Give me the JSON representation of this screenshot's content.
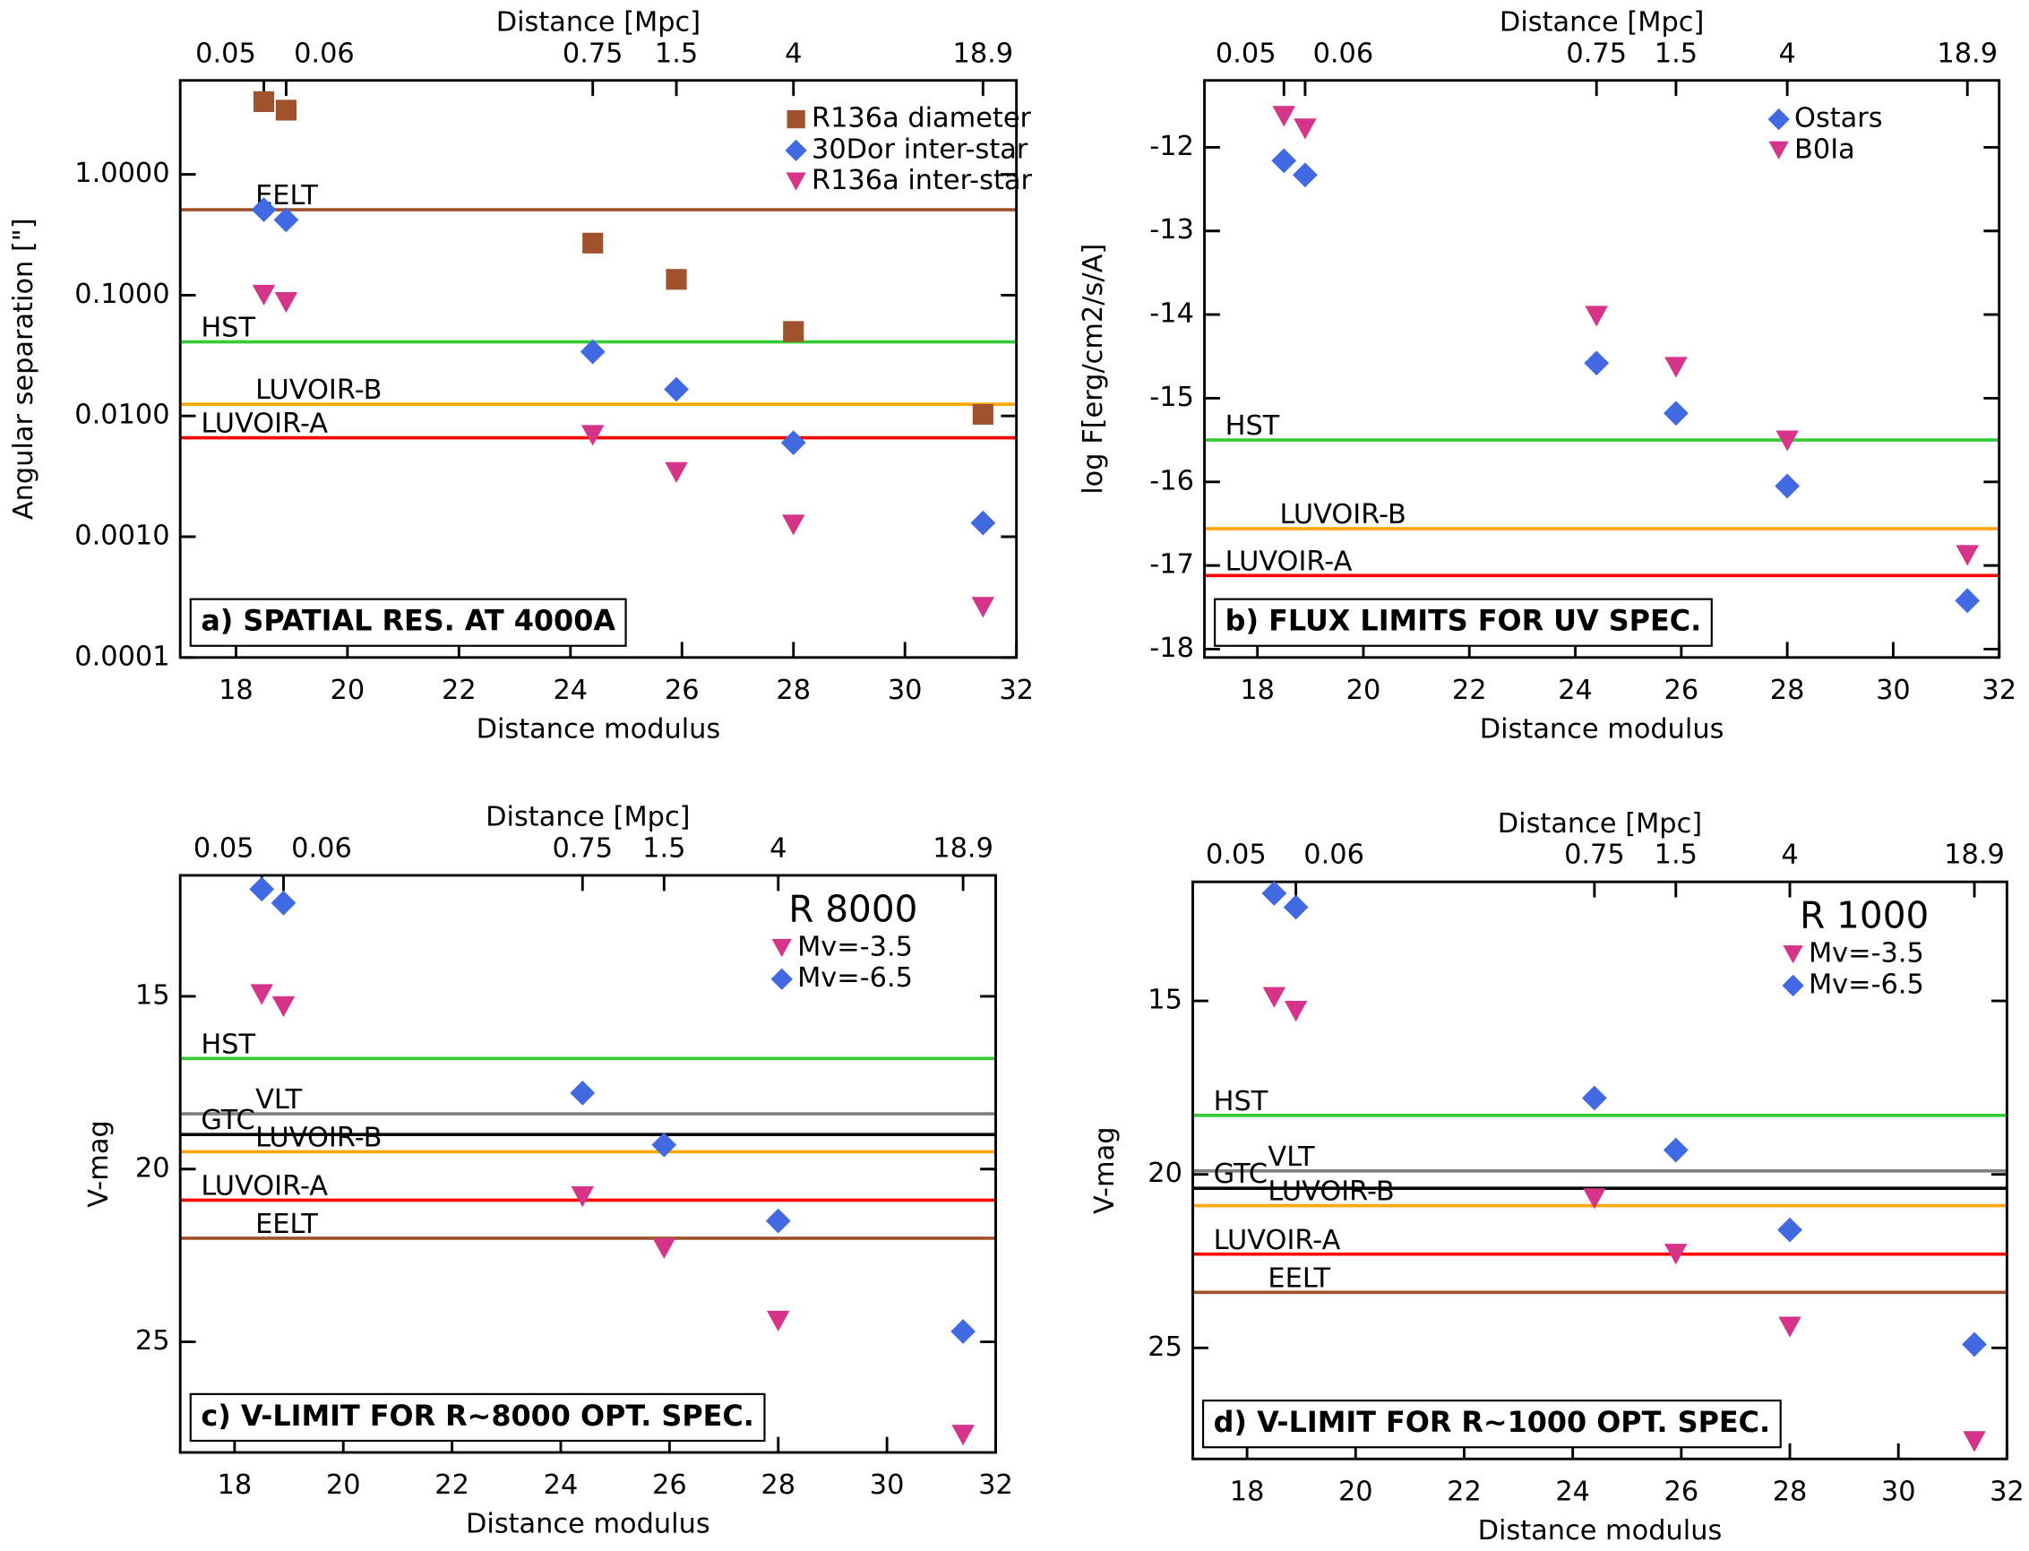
{
  "chart_data": [
    {
      "type": "scatter",
      "title": "a) SPATIAL RES. AT 4000A",
      "xlabel": "Distance modulus",
      "x2label": "Distance [Mpc]",
      "ylabel": "Angular separation [\"]",
      "xlim": [
        17,
        32
      ],
      "xticks": [
        18,
        20,
        22,
        24,
        26,
        28,
        30,
        32
      ],
      "x2ticks": [
        {
          "value": 18.5,
          "label": "0.05"
        },
        {
          "value": 18.9,
          "label": "0.06"
        },
        {
          "value": 24.4,
          "label": "0.75"
        },
        {
          "value": 25.9,
          "label": "1.5"
        },
        {
          "value": 28,
          "label": "4"
        },
        {
          "value": 31.4,
          "label": "18.9"
        }
      ],
      "ylim": [
        0.0001,
        6
      ],
      "ylog": true,
      "yreverse": false,
      "yticks": [
        {
          "value": 1,
          "label": "1.0000"
        },
        {
          "value": 0.1,
          "label": "0.1000"
        },
        {
          "value": 0.01,
          "label": "0.0100"
        },
        {
          "value": 0.001,
          "label": "0.0010"
        },
        {
          "value": 0.0001,
          "label": "0.0001"
        }
      ],
      "legend": "upper right",
      "series": [
        {
          "name": "R136a diameter",
          "color": "#a0522d",
          "marker": "square",
          "x": [
            18.5,
            18.9,
            24.4,
            25.9,
            28,
            31.4
          ],
          "values": [
            4.0,
            3.4,
            0.27,
            0.135,
            0.05,
            0.0103
          ]
        },
        {
          "name": "30Dor inter-star",
          "color": "#4169e1",
          "marker": "diamond",
          "x": [
            18.5,
            18.9,
            24.4,
            25.9,
            28,
            31.4
          ],
          "values": [
            0.51,
            0.42,
            0.034,
            0.0166,
            0.006,
            0.0013
          ]
        },
        {
          "name": "R136a inter-star",
          "color": "#d6338a",
          "marker": "triangle",
          "x": [
            18.5,
            18.9,
            24.4,
            25.9,
            28,
            31.4
          ],
          "values": [
            0.1,
            0.087,
            0.0069,
            0.0034,
            0.00125,
            0.00026
          ]
        }
      ],
      "hlines": [
        {
          "name": "EELT",
          "color": "#a0522d",
          "value": 0.51
        },
        {
          "name": "HST",
          "color": "#33cc33",
          "value": 0.041
        },
        {
          "name": "LUVOIR-B",
          "color": "#ffa500",
          "value": 0.0125
        },
        {
          "name": "LUVOIR-A",
          "color": "#ff0000",
          "value": 0.0066
        }
      ]
    },
    {
      "type": "scatter",
      "title": "b) FLUX LIMITS FOR UV SPEC.",
      "xlabel": "Distance modulus",
      "x2label": "Distance [Mpc]",
      "ylabel": "log F[erg/cm2/s/A]",
      "xlim": [
        17,
        32
      ],
      "xticks": [
        18,
        20,
        22,
        24,
        26,
        28,
        30,
        32
      ],
      "x2ticks": [
        {
          "value": 18.5,
          "label": "0.05"
        },
        {
          "value": 18.9,
          "label": "0.06"
        },
        {
          "value": 24.4,
          "label": "0.75"
        },
        {
          "value": 25.9,
          "label": "1.5"
        },
        {
          "value": 28,
          "label": "4"
        },
        {
          "value": 31.4,
          "label": "18.9"
        }
      ],
      "ylim": [
        -18.1,
        -11.2
      ],
      "ylog": false,
      "yreverse": false,
      "yticks": [
        -12,
        -13,
        -14,
        -15,
        -16,
        -17,
        -18
      ],
      "legend": "upper right",
      "series": [
        {
          "name": "Ostars",
          "color": "#4169e1",
          "marker": "diamond",
          "x": [
            18.5,
            18.9,
            24.4,
            25.9,
            28,
            31.4
          ],
          "values": [
            -12.16,
            -12.33,
            -14.58,
            -15.18,
            -16.05,
            -17.42
          ]
        },
        {
          "name": "B0Ia",
          "color": "#d6338a",
          "marker": "triangle",
          "x": [
            18.5,
            18.9,
            24.4,
            25.9,
            28,
            31.4
          ],
          "values": [
            -11.63,
            -11.78,
            -14.02,
            -14.63,
            -15.51,
            -16.88
          ]
        }
      ],
      "hlines": [
        {
          "name": "HST",
          "color": "#33cc33",
          "value": -15.5
        },
        {
          "name": "LUVOIR-B",
          "color": "#ffa500",
          "value": -16.56
        },
        {
          "name": "LUVOIR-A",
          "color": "#ff0000",
          "value": -17.12
        }
      ]
    },
    {
      "type": "scatter",
      "title": "c) V-LIMIT FOR R~8000 OPT. SPEC.",
      "annotation": "R 8000",
      "xlabel": "Distance modulus",
      "x2label": "Distance [Mpc]",
      "ylabel": "V-mag",
      "xlim": [
        17,
        32
      ],
      "xticks": [
        18,
        20,
        22,
        24,
        26,
        28,
        30,
        32
      ],
      "x2ticks": [
        {
          "value": 18.5,
          "label": "0.05"
        },
        {
          "value": 18.9,
          "label": "0.06"
        },
        {
          "value": 24.4,
          "label": "0.75"
        },
        {
          "value": 25.9,
          "label": "1.5"
        },
        {
          "value": 28,
          "label": "4"
        },
        {
          "value": 31.4,
          "label": "18.9"
        }
      ],
      "ylim": [
        11.5,
        28.2
      ],
      "ylog": false,
      "yreverse": true,
      "yticks": [
        15,
        20,
        25
      ],
      "legend": "upper right",
      "series": [
        {
          "name": "Mv=-3.5",
          "color": "#d6338a",
          "marker": "triangle",
          "x": [
            18.5,
            18.9,
            24.4,
            25.9,
            28,
            31.4
          ],
          "values": [
            14.95,
            15.3,
            20.8,
            22.3,
            24.4,
            27.7
          ]
        },
        {
          "name": "Mv=-6.5",
          "color": "#4169e1",
          "marker": "diamond",
          "x": [
            18.5,
            18.9,
            24.4,
            25.9,
            28,
            31.4
          ],
          "values": [
            11.9,
            12.3,
            17.8,
            19.3,
            21.5,
            24.7
          ]
        }
      ],
      "hlines": [
        {
          "name": "HST",
          "color": "#33cc33",
          "value": 16.8
        },
        {
          "name": "VLT",
          "color": "#808080",
          "value": 18.4
        },
        {
          "name": "GTC",
          "color": "#000000",
          "value": 19.0
        },
        {
          "name": "LUVOIR-B",
          "color": "#ffa500",
          "value": 19.5
        },
        {
          "name": "LUVOIR-A",
          "color": "#ff0000",
          "value": 20.9
        },
        {
          "name": "EELT",
          "color": "#a0522d",
          "value": 22.0
        }
      ]
    },
    {
      "type": "scatter",
      "title": "d) V-LIMIT FOR R~1000 OPT. SPEC.",
      "annotation": "R 1000",
      "xlabel": "Distance modulus",
      "x2label": "Distance [Mpc]",
      "ylabel": "V-mag",
      "xlim": [
        17,
        32
      ],
      "xticks": [
        18,
        20,
        22,
        24,
        26,
        28,
        30,
        32
      ],
      "x2ticks": [
        {
          "value": 18.5,
          "label": "0.05"
        },
        {
          "value": 18.9,
          "label": "0.06"
        },
        {
          "value": 24.4,
          "label": "0.75"
        },
        {
          "value": 25.9,
          "label": "1.5"
        },
        {
          "value": 28,
          "label": "4"
        },
        {
          "value": 31.4,
          "label": "18.9"
        }
      ],
      "ylim": [
        11.57,
        28.2
      ],
      "ylog": false,
      "yreverse": true,
      "yticks": [
        15,
        20,
        25
      ],
      "legend": "upper right",
      "series": [
        {
          "name": "Mv=-3.5",
          "color": "#d6338a",
          "marker": "triangle",
          "x": [
            18.5,
            18.9,
            24.4,
            25.9,
            28,
            31.4
          ],
          "values": [
            14.9,
            15.3,
            20.7,
            22.3,
            24.4,
            27.7
          ]
        },
        {
          "name": "Mv=-6.5",
          "color": "#4169e1",
          "marker": "diamond",
          "x": [
            18.5,
            18.9,
            24.4,
            25.9,
            28,
            31.4
          ],
          "values": [
            11.9,
            12.3,
            17.8,
            19.3,
            21.6,
            24.9
          ]
        }
      ],
      "hlines": [
        {
          "name": "HST",
          "color": "#33cc33",
          "value": 18.3
        },
        {
          "name": "VLT",
          "color": "#808080",
          "value": 19.9
        },
        {
          "name": "GTC",
          "color": "#000000",
          "value": 20.4
        },
        {
          "name": "LUVOIR-B",
          "color": "#ffa500",
          "value": 20.9
        },
        {
          "name": "LUVOIR-A",
          "color": "#ff0000",
          "value": 22.3
        },
        {
          "name": "EELT",
          "color": "#a0522d",
          "value": 23.4
        }
      ]
    }
  ]
}
